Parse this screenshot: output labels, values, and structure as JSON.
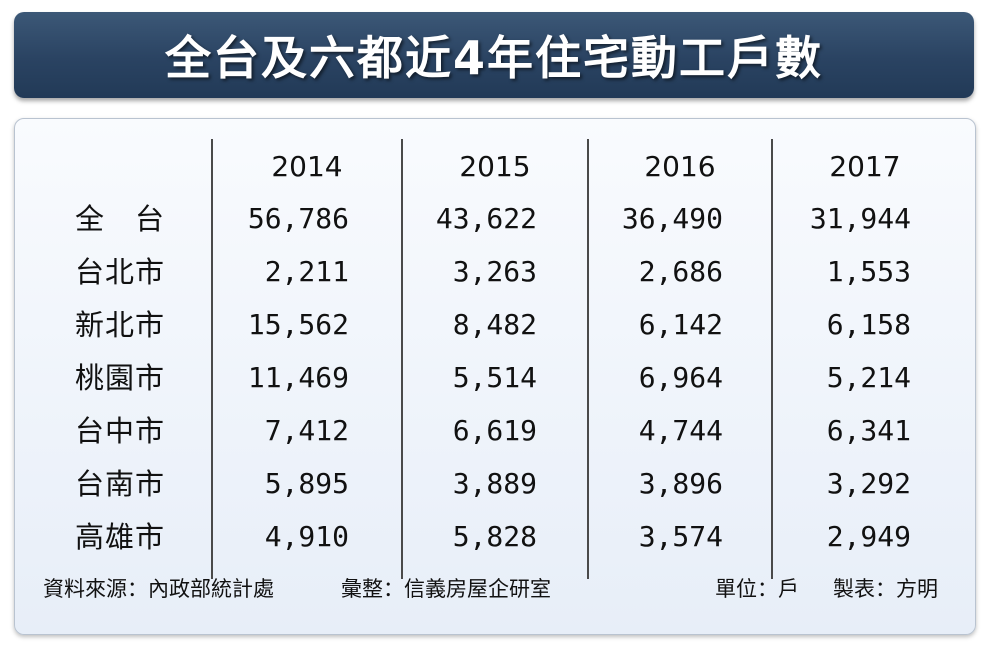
{
  "title": "全台及六都近4年住宅動工戶數",
  "chart_data": {
    "type": "table",
    "columns": [
      "2014",
      "2015",
      "2016",
      "2017"
    ],
    "rows": [
      {
        "label": "全　台",
        "values": [
          "56,786",
          "43,622",
          "36,490",
          "31,944"
        ]
      },
      {
        "label": "台北市",
        "values": [
          "2,211",
          "3,263",
          "2,686",
          "1,553"
        ]
      },
      {
        "label": "新北市",
        "values": [
          "15,562",
          "8,482",
          "6,142",
          "6,158"
        ]
      },
      {
        "label": "桃園市",
        "values": [
          "11,469",
          "5,514",
          "6,964",
          "5,214"
        ]
      },
      {
        "label": "台中市",
        "values": [
          "7,412",
          "6,619",
          "4,744",
          "6,341"
        ]
      },
      {
        "label": "台南市",
        "values": [
          "5,895",
          "3,889",
          "3,896",
          "3,292"
        ]
      },
      {
        "label": "高雄市",
        "values": [
          "4,910",
          "5,828",
          "3,574",
          "2,949"
        ]
      }
    ]
  },
  "footer": {
    "source": "資料來源：內政部統計處",
    "compiled": "彙整：信義房屋企研室",
    "unit": "單位：戶",
    "maker": "製表：方明"
  },
  "colors": {
    "title_bg": "#2a4362",
    "panel_bg": "#e7eef8",
    "text": "#111111"
  }
}
